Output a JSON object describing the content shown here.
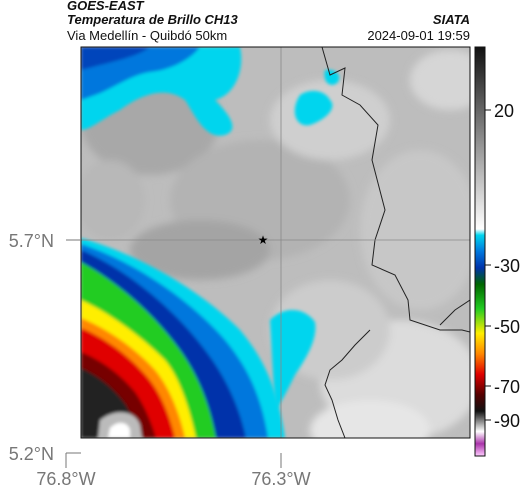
{
  "header": {
    "satellite": "GOES-EAST",
    "product": "Temperatura de Brillo CH13",
    "route": "Via Medellín - Quibdó 50km",
    "organization": "SIATA",
    "datetime": "2024-09-01 19:59"
  },
  "map": {
    "lat_ticks": [
      "5.7°N",
      "5.2°N"
    ],
    "lon_ticks": [
      "76.8°W",
      "76.3°W"
    ],
    "gridline": true,
    "marker": "star-icon"
  },
  "colorbar": {
    "tick_labels": [
      "20",
      "-30",
      "-50",
      "-70",
      "-90"
    ],
    "colors": {
      "white": "#ffffff",
      "gray": "#8c8c8c",
      "black": "#111111",
      "cyan": "#00d5ee",
      "blue": "#0033aa",
      "green": "#22cc22",
      "yellow": "#ffee00",
      "orange": "#ff8800",
      "red": "#e00000",
      "darkred": "#550000",
      "magenta": "#cc55cc"
    }
  }
}
